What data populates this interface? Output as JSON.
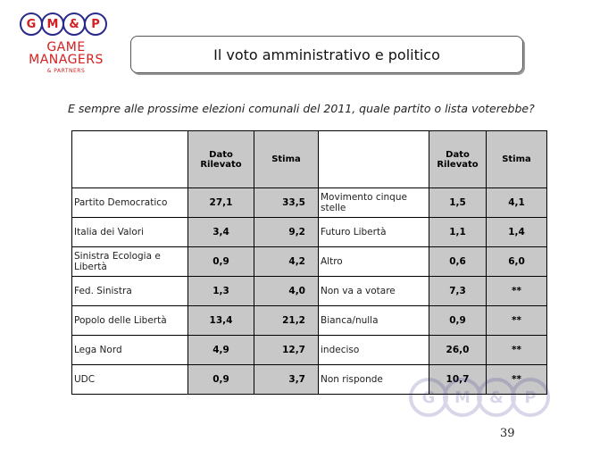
{
  "logo": {
    "balls": [
      "G",
      "M",
      "&",
      "P"
    ],
    "line1": "GAME",
    "line2": "MANAGERS",
    "line3": "& PARTNERS"
  },
  "title": "Il voto amministrativo e politico",
  "question": "E sempre alle prossime elezioni comunali del 2011, quale partito o lista voterebbe?",
  "table": {
    "headers": {
      "dato_rilevato": "Dato\nRilevato",
      "stima": "Stima"
    },
    "left_rows": [
      {
        "label": "Partito Democratico",
        "dato": "27,1",
        "stima": "33,5"
      },
      {
        "label": "Italia dei Valori",
        "dato": "3,4",
        "stima": "9,2"
      },
      {
        "label": "Sinistra Ecologia e Libertà",
        "dato": "0,9",
        "stima": "4,2"
      },
      {
        "label": "Fed. Sinistra",
        "dato": "1,3",
        "stima": "4,0"
      },
      {
        "label": "Popolo delle Libertà",
        "dato": "13,4",
        "stima": "21,2"
      },
      {
        "label": "Lega Nord",
        "dato": "4,9",
        "stima": "12,7"
      },
      {
        "label": "UDC",
        "dato": "0,9",
        "stima": "3,7"
      }
    ],
    "right_rows": [
      {
        "label": "Movimento cinque stelle",
        "dato": "1,5",
        "stima": "4,1"
      },
      {
        "label": "Futuro Libertà",
        "dato": "1,1",
        "stima": "1,4"
      },
      {
        "label": "Altro",
        "dato": "0,6",
        "stima": "6,0"
      },
      {
        "label": "Non va a votare",
        "dato": "7,3",
        "stima": "**"
      },
      {
        "label": "Bianca/nulla",
        "dato": "0,9",
        "stima": "**"
      },
      {
        "label": "indeciso",
        "dato": "26,0",
        "stima": "**"
      },
      {
        "label": "Non risponde",
        "dato": "10,7",
        "stima": "**"
      }
    ]
  },
  "page_number": "39"
}
